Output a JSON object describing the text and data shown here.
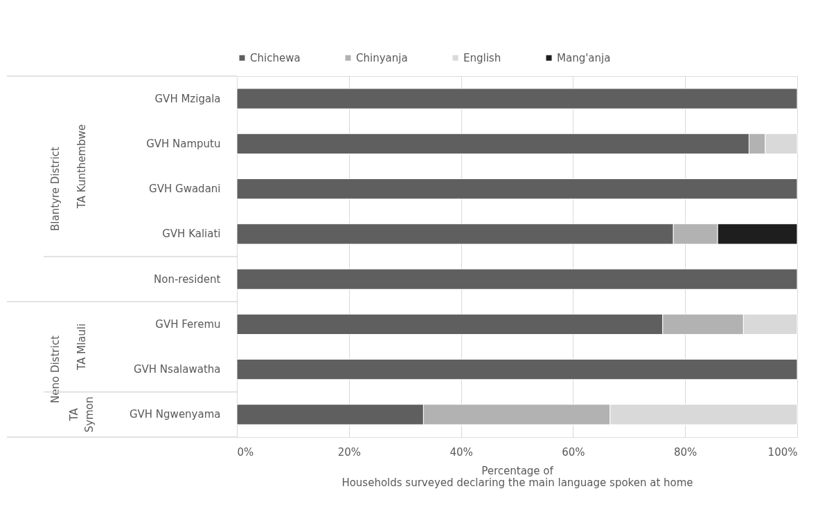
{
  "chart_data": {
    "type": "bar",
    "orientation": "horizontal",
    "stacked": true,
    "categories": [
      "GVH Mzigala",
      "GVH Namputu",
      "GVH Gwadani",
      "GVH Kaliati",
      "Non-resident",
      "GVH Feremu",
      "GVH Nsalawatha",
      "GVH Ngwenyama"
    ],
    "series": [
      {
        "name": "Chichewa",
        "color": "#5f5f5f",
        "values": [
          100,
          91.4,
          100,
          77.9,
          100,
          76.0,
          100,
          33.3
        ]
      },
      {
        "name": "Chinyanja",
        "color": "#b2b2b2",
        "values": [
          null,
          2.9,
          null,
          7.9,
          null,
          14.4,
          null,
          33.3
        ]
      },
      {
        "name": "English",
        "color": "#d9d9d9",
        "values": [
          null,
          5.7,
          null,
          null,
          null,
          9.6,
          null,
          33.4
        ]
      },
      {
        "name": "Mang'anja",
        "color": "#1e1e1e",
        "values": [
          null,
          null,
          null,
          14.2,
          null,
          null,
          null,
          null
        ]
      }
    ],
    "xlabel": "Percentage of\nHouseholds surveyed declaring the main language spoken at home",
    "xlim": [
      0,
      100
    ],
    "xticks": [
      {
        "value": 0,
        "label": "0%"
      },
      {
        "value": 20,
        "label": "20%"
      },
      {
        "value": 40,
        "label": "40%"
      },
      {
        "value": 60,
        "label": "60%"
      },
      {
        "value": 80,
        "label": "80%"
      },
      {
        "value": 100,
        "label": "100%"
      }
    ],
    "annotations": [
      "Blantyre District",
      "TA Kunthembwe",
      "Neno District",
      "TA Mlauli",
      "TA Symon"
    ],
    "grid": "x",
    "legend": "top"
  }
}
